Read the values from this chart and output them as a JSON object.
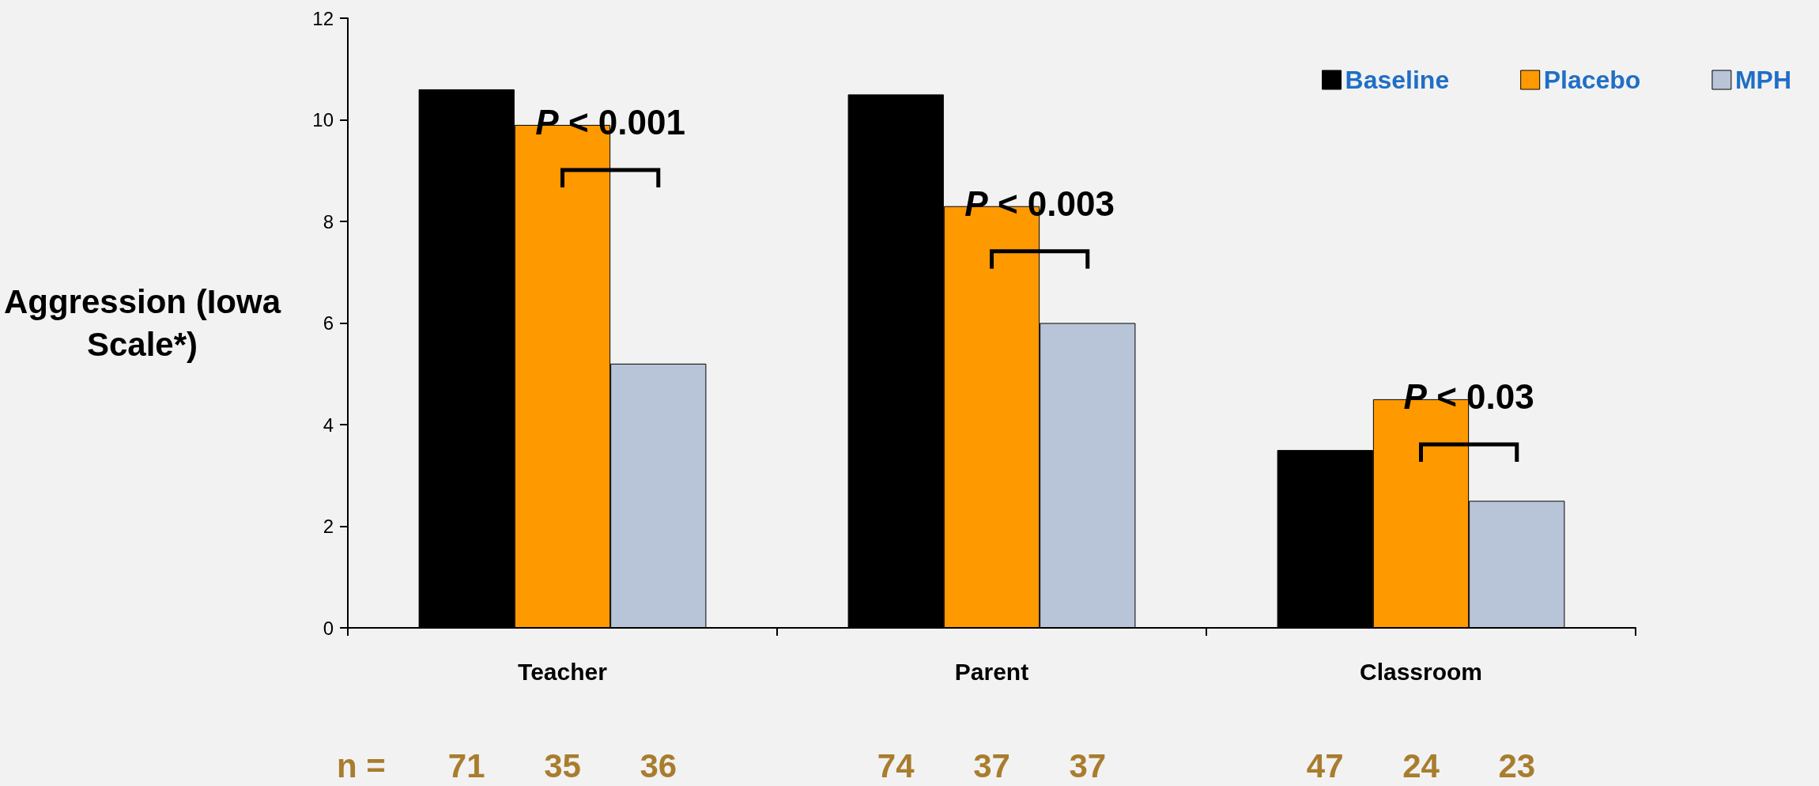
{
  "chart_data": {
    "type": "bar",
    "ylabel": "Aggression (Iowa Scale*)",
    "categories": [
      "Teacher",
      "Parent",
      "Classroom"
    ],
    "series": [
      {
        "name": "Baseline",
        "color": "#000000",
        "values": [
          10.6,
          10.5,
          3.5
        ]
      },
      {
        "name": "Placebo",
        "color": "#ff9900",
        "values": [
          9.9,
          8.3,
          4.5
        ]
      },
      {
        "name": "MPH",
        "color": "#b8c4d8",
        "values": [
          5.2,
          6.0,
          2.5
        ]
      }
    ],
    "ylim": [
      0,
      12
    ],
    "yticks": [
      0,
      2,
      4,
      6,
      8,
      10,
      12
    ],
    "grid": false,
    "legend": "top right",
    "annotations": [
      "P < 0.001",
      "P < 0.003",
      "P < 0.03",
      "n =",
      "71",
      "35",
      "36",
      "74",
      "37",
      "37",
      "47",
      "24",
      "23"
    ]
  }
}
